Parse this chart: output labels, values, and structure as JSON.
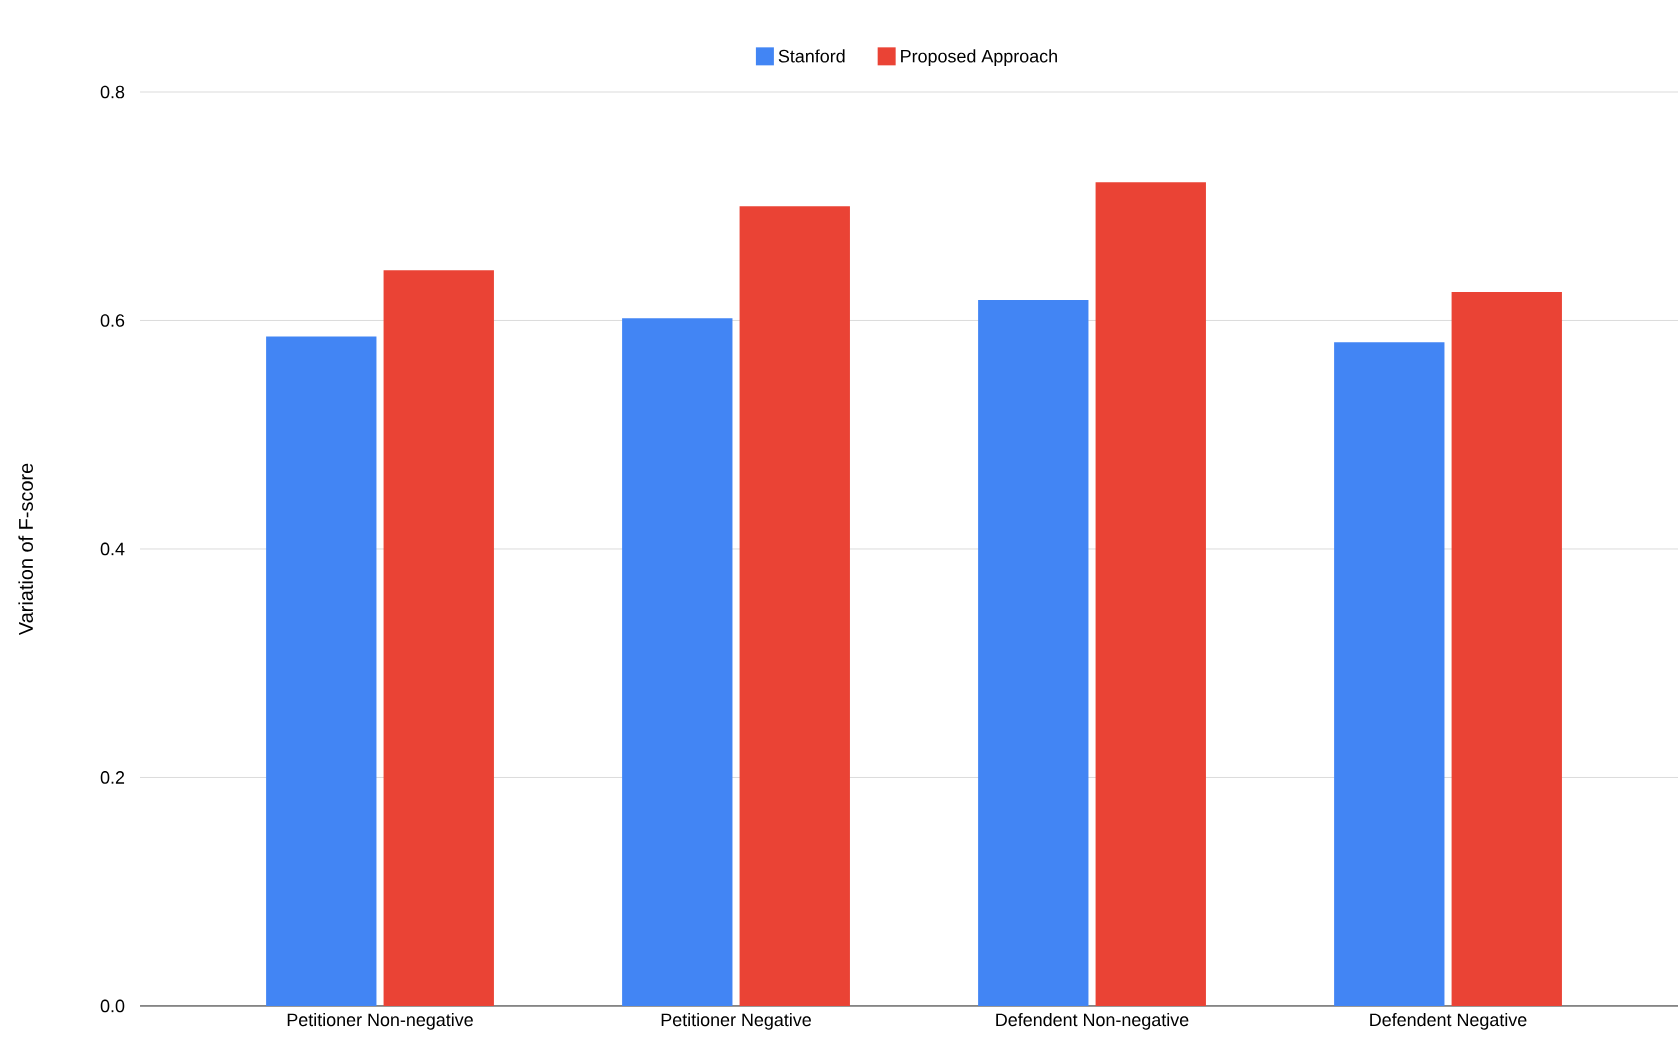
{
  "chart_data": {
    "type": "bar",
    "ylabel": "Variation of F-score",
    "categories": [
      "Petitioner Non-negative",
      "Petitioner Negative",
      "Defendent Non-negative",
      "Defendent Negative"
    ],
    "series": [
      {
        "name": "Stanford",
        "color": "#4285f4",
        "values": [
          0.586,
          0.602,
          0.618,
          0.581
        ]
      },
      {
        "name": "Proposed Approach",
        "color": "#ea4335",
        "values": [
          0.644,
          0.7,
          0.721,
          0.625
        ]
      }
    ],
    "ylim": [
      0,
      0.8
    ],
    "yticks": [
      {
        "value": 0,
        "label": "0.0"
      },
      {
        "value": 0.2,
        "label": "0.2"
      },
      {
        "value": 0.4,
        "label": "0.4"
      },
      {
        "value": 0.6,
        "label": "0.6"
      },
      {
        "value": 0.8,
        "label": "0.8"
      }
    ],
    "grid": "y",
    "legend": "top"
  }
}
